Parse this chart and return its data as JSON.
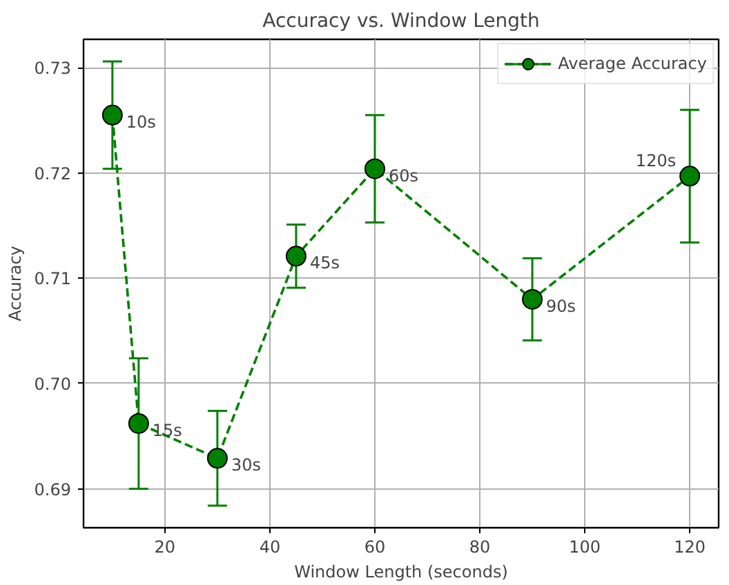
{
  "chart_data": {
    "type": "line",
    "title": "Accuracy vs. Window Length",
    "xlabel": "Window Length (seconds)",
    "ylabel": "Accuracy",
    "x": [
      10,
      15,
      30,
      45,
      60,
      90,
      120
    ],
    "series": [
      {
        "name": "Average Accuracy",
        "color": "#008000",
        "values": [
          0.7255,
          0.6962,
          0.6929,
          0.7121,
          0.7204,
          0.708,
          0.7197
        ],
        "errors": [
          0.0051,
          0.0062,
          0.0045,
          0.003,
          0.0051,
          0.0039,
          0.0063
        ]
      }
    ],
    "annotations": [
      {
        "text": "10s",
        "x": 10,
        "y": 0.7255
      },
      {
        "text": "15s",
        "x": 15,
        "y": 0.6962
      },
      {
        "text": "30s",
        "x": 30,
        "y": 0.6929
      },
      {
        "text": "45s",
        "x": 45,
        "y": 0.7121
      },
      {
        "text": "60s",
        "x": 60,
        "y": 0.7204
      },
      {
        "text": "90s",
        "x": 90,
        "y": 0.708
      },
      {
        "text": "120s",
        "x": 120,
        "y": 0.7197
      }
    ],
    "xlim": [
      4.5,
      125.5
    ],
    "ylim": [
      0.6863,
      0.7327
    ],
    "xticks": [
      20,
      40,
      60,
      80,
      100,
      120
    ],
    "yticks": [
      0.69,
      {
        "value": 0.7,
        "label": "0.70"
      },
      0.71,
      0.72,
      0.73
    ],
    "grid": true,
    "legend": "top right",
    "marker": "circle",
    "line_style": "dashed"
  }
}
